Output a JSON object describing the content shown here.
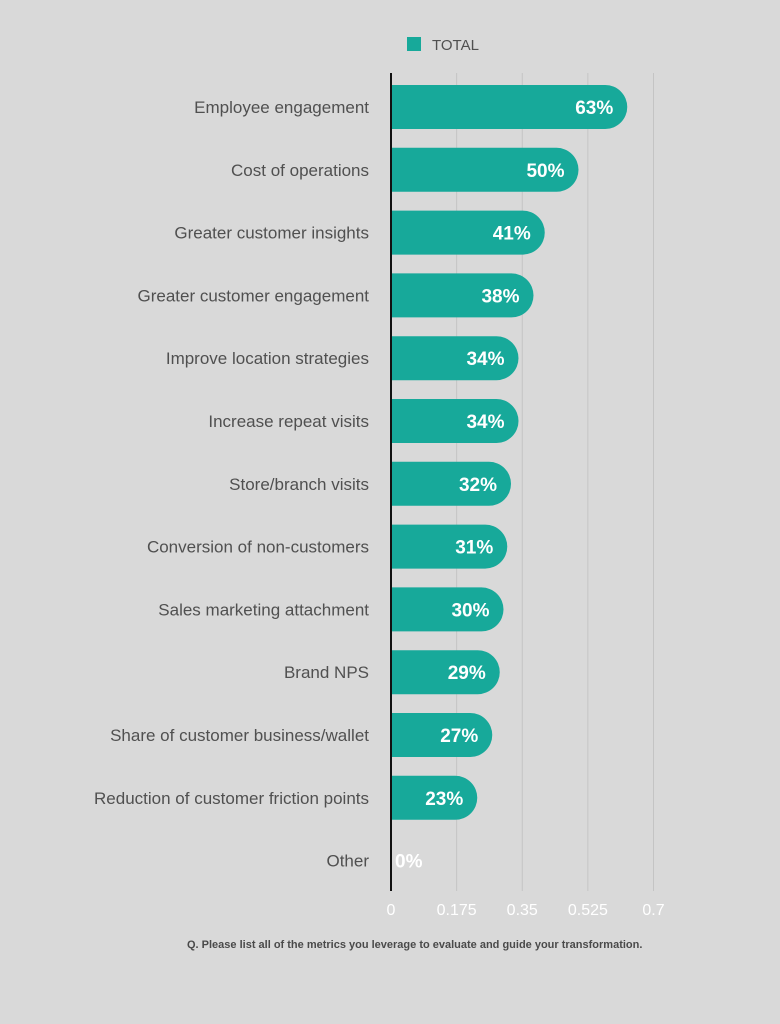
{
  "chart_data": {
    "type": "bar",
    "orientation": "horizontal",
    "legend": {
      "entries": [
        {
          "name": "TOTAL",
          "color": "#17a99a"
        }
      ],
      "position": "top"
    },
    "categories": [
      "Employee engagement",
      "Cost of operations",
      "Greater customer insights",
      "Greater customer engagement",
      "Improve location strategies",
      "Increase repeat visits",
      "Store/branch visits",
      "Conversion of non-customers",
      "Sales marketing attachment",
      "Brand NPS",
      "Share of customer business/wallet",
      "Reduction of customer friction points",
      "Other"
    ],
    "series": [
      {
        "name": "TOTAL",
        "values": [
          0.63,
          0.5,
          0.41,
          0.38,
          0.34,
          0.34,
          0.32,
          0.31,
          0.3,
          0.29,
          0.27,
          0.23,
          0.0
        ],
        "labels": [
          "63%",
          "50%",
          "41%",
          "38%",
          "34%",
          "34%",
          "32%",
          "31%",
          "30%",
          "29%",
          "27%",
          "23%",
          "0%"
        ],
        "color": "#17a99a"
      }
    ],
    "xlim": [
      0,
      0.7
    ],
    "xticks": [
      0,
      0.175,
      0.35,
      0.525,
      0.7
    ],
    "xtick_labels": [
      "0",
      "0.175",
      "0.35",
      "0.525",
      "0.7"
    ],
    "grid": "vertical",
    "xlabel": "",
    "ylabel": ""
  },
  "footnote": "Q. Please list all of the metrics you leverage to evaluate and guide your transformation.",
  "colors": {
    "background": "#d9d9d9",
    "bar": "#17a99a",
    "axis": "#111111",
    "grid": "#c4c4c4",
    "category_text": "#505050",
    "tick_text": "#ffffff"
  }
}
